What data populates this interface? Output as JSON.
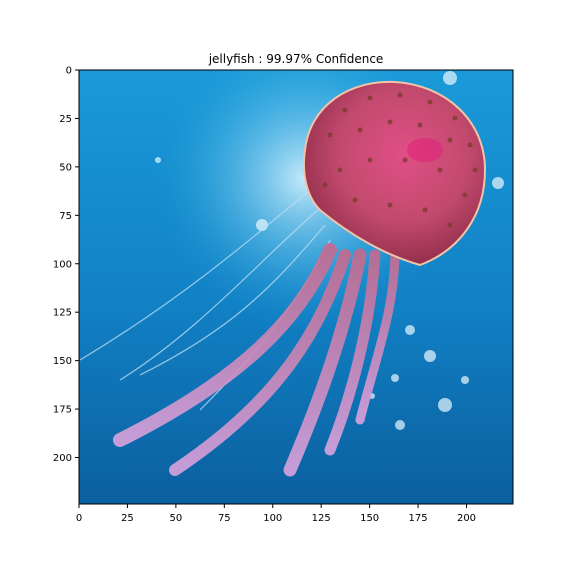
{
  "figure": {
    "title": "jellyfish : 99.97% Confidence"
  },
  "axes": {
    "x_range": [
      0,
      224
    ],
    "y_range": [
      0,
      224
    ],
    "y_inverted": true,
    "x_ticks": [
      0,
      25,
      50,
      75,
      100,
      125,
      150,
      175,
      200
    ],
    "y_ticks": [
      0,
      25,
      50,
      75,
      100,
      125,
      150,
      175,
      200
    ],
    "grid": false
  },
  "image": {
    "subject": "jellyfish",
    "colors": {
      "water_deep": "#0b5f9e",
      "water_mid": "#1d8fd0",
      "water_light": "#7fd3f2",
      "bell_pink": "#d0507a",
      "bell_dark": "#8b2a45",
      "tentacle_pink": "#c27ab4",
      "tentacle_light": "#e7b7df"
    }
  }
}
